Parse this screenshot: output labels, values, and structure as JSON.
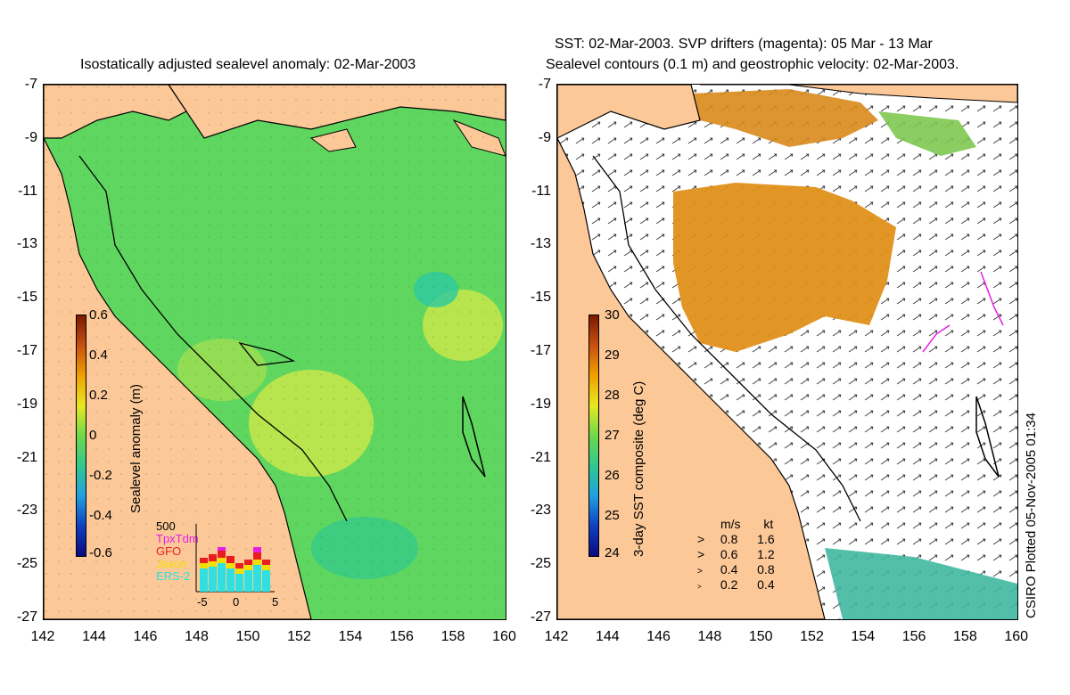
{
  "left": {
    "title": "Isostatically adjusted sealevel anomaly: 02-Mar-2003",
    "colorbar_label": "Sealevel anomaly (m)",
    "colorbar_ticks": [
      "0.6",
      "0.4",
      "0.2",
      "0",
      "-0.2",
      "-0.4",
      "-0.6"
    ],
    "histogram": {
      "ymax_label": "500",
      "legend": [
        {
          "name": "TpxTdm",
          "color": "#e81ee8"
        },
        {
          "name": "GFO",
          "color": "#e81e1e"
        },
        {
          "name": "Jason",
          "color": "#f0e000"
        },
        {
          "name": "ERS-2",
          "color": "#30e0e0"
        }
      ],
      "xticks": [
        "-5",
        "0",
        "5"
      ]
    }
  },
  "right": {
    "title_line1": "SST: 02-Mar-2003. SVP drifters (magenta): 05 Mar - 13 Mar",
    "title_line2": "Sealevel contours (0.1 m) and geostrophic velocity: 02-Mar-2003.",
    "colorbar_label": "3-day SST composite (deg C)",
    "colorbar_ticks": [
      "30",
      "29",
      "28",
      "27",
      "26",
      "25",
      "24"
    ],
    "speed_legend": {
      "header_ms": "m/s",
      "header_kt": "kt",
      "rows": [
        {
          "ms": "0.8",
          "kt": "1.6"
        },
        {
          "ms": "0.6",
          "kt": "1.2"
        },
        {
          "ms": "0.4",
          "kt": "0.8"
        },
        {
          "ms": "0.2",
          "kt": "0.4"
        }
      ]
    }
  },
  "y_ticks": [
    "-7",
    "-9",
    "-11",
    "-13",
    "-15",
    "-17",
    "-19",
    "-21",
    "-23",
    "-25",
    "-27"
  ],
  "x_ticks": [
    "142",
    "144",
    "146",
    "148",
    "150",
    "152",
    "154",
    "156",
    "158",
    "160"
  ],
  "credit": "CSIRO Plotted 05-Nov-2005 01:34",
  "colors": {
    "land": "#fcc898",
    "ocean_green": "#5fd65f",
    "sst_orange": "#e0901a",
    "sst_white": "#ffffff"
  }
}
